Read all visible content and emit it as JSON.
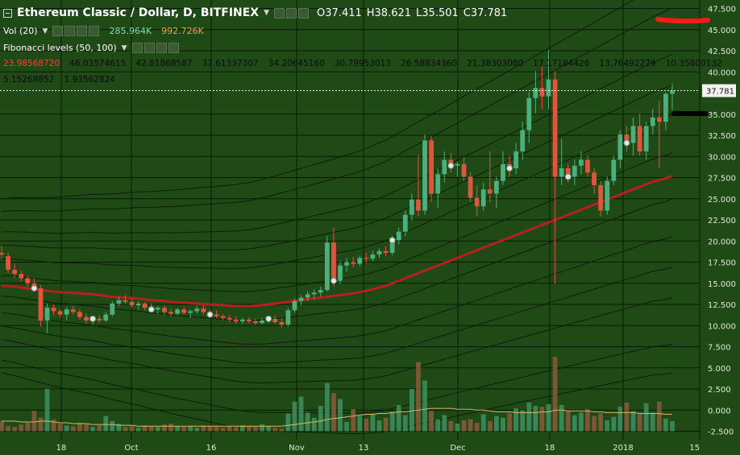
{
  "header": {
    "symbol_title": "Ethereum Classic / Dollar, D, BITFINEX",
    "open": "O37.411",
    "high": "H38.621",
    "low": "L35.501",
    "close": "C37.781"
  },
  "volume_legend": {
    "label": "Vol (20)",
    "value1": "285.964K",
    "value2": "992.726K"
  },
  "fib_legend": {
    "label": "Fibonacci levels (50, 100)",
    "row1": [
      "23.98568720",
      "46.03574615",
      "42.81868587",
      "37.61337307",
      "34.20645160",
      "30.79953013",
      "26.58834360",
      "21.38303080",
      "17.17184426",
      "13.76492279",
      "10.35800132"
    ],
    "row2": [
      "5.15268852",
      "1.93562824"
    ]
  },
  "current_price_label": "37.781",
  "colors": {
    "background": "#1f4a15",
    "up_candle": "#4caf7d",
    "down_candle": "#e05540",
    "ma_line": "#b51f1f",
    "fib_lines": "#0c1f08",
    "grid": "#081a05"
  },
  "annotations": [
    "red-marker-near-46",
    "black-marker-near-35"
  ],
  "chart_data": {
    "type": "candlestick",
    "title": "Ethereum Classic / Dollar, D, BITFINEX",
    "price_axis_ticks": [
      "47.500",
      "45.000",
      "42.500",
      "40.000",
      "37.781",
      "35.000",
      "32.500",
      "30.000",
      "27.500",
      "25.000",
      "22.500",
      "20.000",
      "17.500",
      "15.000",
      "12.500",
      "10.000",
      "7.500",
      "5.000",
      "2.500",
      "0.000",
      "-2.500"
    ],
    "x_axis_labels": [
      "18",
      "Oct",
      "16",
      "Nov",
      "13",
      "Dec",
      "18",
      "2018",
      "15"
    ],
    "ylim": [
      -3.5,
      48.5
    ],
    "grid": true,
    "candles": [
      {
        "o": 18.6,
        "h": 19.4,
        "l": 17.9,
        "c": 18.4
      },
      {
        "o": 18.2,
        "h": 18.6,
        "l": 16.2,
        "c": 16.6
      },
      {
        "o": 16.6,
        "h": 17.3,
        "l": 15.6,
        "c": 16.1
      },
      {
        "o": 16.1,
        "h": 16.5,
        "l": 15.2,
        "c": 15.6
      },
      {
        "o": 15.6,
        "h": 15.9,
        "l": 14.6,
        "c": 15.0
      },
      {
        "o": 15.0,
        "h": 15.6,
        "l": 14.1,
        "c": 14.4
      },
      {
        "o": 14.4,
        "h": 14.8,
        "l": 9.9,
        "c": 10.6
      },
      {
        "o": 10.6,
        "h": 12.6,
        "l": 9.1,
        "c": 12.1
      },
      {
        "o": 12.1,
        "h": 12.5,
        "l": 11.2,
        "c": 11.7
      },
      {
        "o": 11.7,
        "h": 12.0,
        "l": 10.9,
        "c": 11.3
      },
      {
        "o": 11.3,
        "h": 12.2,
        "l": 10.6,
        "c": 11.9
      },
      {
        "o": 11.9,
        "h": 12.3,
        "l": 11.3,
        "c": 11.6
      },
      {
        "o": 11.6,
        "h": 11.9,
        "l": 10.7,
        "c": 11.0
      },
      {
        "o": 11.0,
        "h": 11.4,
        "l": 10.2,
        "c": 10.6
      },
      {
        "o": 10.6,
        "h": 11.1,
        "l": 10.1,
        "c": 10.8
      },
      {
        "o": 10.8,
        "h": 11.2,
        "l": 10.3,
        "c": 10.6
      },
      {
        "o": 10.6,
        "h": 11.6,
        "l": 10.4,
        "c": 11.3
      },
      {
        "o": 11.3,
        "h": 12.9,
        "l": 11.1,
        "c": 12.6
      },
      {
        "o": 12.6,
        "h": 13.4,
        "l": 12.3,
        "c": 13.0
      },
      {
        "o": 13.0,
        "h": 13.6,
        "l": 12.5,
        "c": 12.8
      },
      {
        "o": 12.8,
        "h": 13.2,
        "l": 12.1,
        "c": 12.4
      },
      {
        "o": 12.4,
        "h": 12.9,
        "l": 11.9,
        "c": 12.6
      },
      {
        "o": 12.6,
        "h": 12.8,
        "l": 11.8,
        "c": 12.1
      },
      {
        "o": 12.1,
        "h": 12.6,
        "l": 11.6,
        "c": 11.9
      },
      {
        "o": 11.9,
        "h": 12.3,
        "l": 11.4,
        "c": 12.1
      },
      {
        "o": 12.1,
        "h": 12.4,
        "l": 11.2,
        "c": 11.6
      },
      {
        "o": 11.6,
        "h": 12.0,
        "l": 11.1,
        "c": 11.4
      },
      {
        "o": 11.4,
        "h": 12.1,
        "l": 11.2,
        "c": 11.9
      },
      {
        "o": 11.9,
        "h": 12.2,
        "l": 11.3,
        "c": 11.5
      },
      {
        "o": 11.5,
        "h": 11.9,
        "l": 10.9,
        "c": 11.7
      },
      {
        "o": 11.7,
        "h": 12.3,
        "l": 11.4,
        "c": 12.0
      },
      {
        "o": 12.0,
        "h": 12.4,
        "l": 11.3,
        "c": 11.6
      },
      {
        "o": 11.6,
        "h": 11.9,
        "l": 11.0,
        "c": 11.3
      },
      {
        "o": 11.3,
        "h": 11.8,
        "l": 10.9,
        "c": 11.1
      },
      {
        "o": 11.1,
        "h": 11.4,
        "l": 10.6,
        "c": 10.9
      },
      {
        "o": 10.9,
        "h": 11.2,
        "l": 10.4,
        "c": 10.7
      },
      {
        "o": 10.7,
        "h": 11.1,
        "l": 10.2,
        "c": 10.5
      },
      {
        "o": 10.5,
        "h": 10.9,
        "l": 10.2,
        "c": 10.7
      },
      {
        "o": 10.7,
        "h": 11.0,
        "l": 10.3,
        "c": 10.5
      },
      {
        "o": 10.5,
        "h": 10.8,
        "l": 10.1,
        "c": 10.3
      },
      {
        "o": 10.3,
        "h": 10.9,
        "l": 10.1,
        "c": 10.6
      },
      {
        "o": 10.6,
        "h": 11.1,
        "l": 10.3,
        "c": 10.8
      },
      {
        "o": 10.8,
        "h": 11.2,
        "l": 10.2,
        "c": 10.4
      },
      {
        "o": 10.4,
        "h": 10.9,
        "l": 9.8,
        "c": 10.1
      },
      {
        "o": 10.1,
        "h": 12.1,
        "l": 9.9,
        "c": 11.8
      },
      {
        "o": 11.8,
        "h": 13.2,
        "l": 11.5,
        "c": 12.9
      },
      {
        "o": 12.9,
        "h": 13.6,
        "l": 12.4,
        "c": 13.3
      },
      {
        "o": 13.3,
        "h": 14.1,
        "l": 12.9,
        "c": 13.7
      },
      {
        "o": 13.7,
        "h": 14.3,
        "l": 13.1,
        "c": 13.9
      },
      {
        "o": 13.9,
        "h": 14.6,
        "l": 13.4,
        "c": 14.2
      },
      {
        "o": 14.2,
        "h": 20.6,
        "l": 14.0,
        "c": 19.8
      },
      {
        "o": 19.8,
        "h": 21.6,
        "l": 14.6,
        "c": 15.3
      },
      {
        "o": 15.3,
        "h": 17.6,
        "l": 14.9,
        "c": 17.1
      },
      {
        "o": 17.1,
        "h": 18.0,
        "l": 16.4,
        "c": 17.5
      },
      {
        "o": 17.5,
        "h": 18.1,
        "l": 16.9,
        "c": 17.3
      },
      {
        "o": 17.3,
        "h": 18.3,
        "l": 17.0,
        "c": 18.0
      },
      {
        "o": 18.0,
        "h": 18.6,
        "l": 17.4,
        "c": 17.9
      },
      {
        "o": 17.9,
        "h": 18.8,
        "l": 17.6,
        "c": 18.4
      },
      {
        "o": 18.4,
        "h": 19.1,
        "l": 18.0,
        "c": 18.8
      },
      {
        "o": 18.8,
        "h": 19.4,
        "l": 18.2,
        "c": 18.6
      },
      {
        "o": 18.6,
        "h": 20.6,
        "l": 18.3,
        "c": 20.1
      },
      {
        "o": 20.1,
        "h": 21.6,
        "l": 19.6,
        "c": 21.1
      },
      {
        "o": 21.1,
        "h": 23.6,
        "l": 20.6,
        "c": 23.1
      },
      {
        "o": 23.1,
        "h": 25.6,
        "l": 22.4,
        "c": 24.9
      },
      {
        "o": 24.9,
        "h": 30.2,
        "l": 22.9,
        "c": 23.6
      },
      {
        "o": 23.6,
        "h": 32.6,
        "l": 23.1,
        "c": 31.9
      },
      {
        "o": 31.9,
        "h": 32.4,
        "l": 24.6,
        "c": 25.6
      },
      {
        "o": 25.6,
        "h": 28.6,
        "l": 23.9,
        "c": 27.9
      },
      {
        "o": 27.9,
        "h": 30.6,
        "l": 26.9,
        "c": 29.6
      },
      {
        "o": 29.6,
        "h": 30.4,
        "l": 28.1,
        "c": 28.9
      },
      {
        "o": 28.9,
        "h": 29.4,
        "l": 27.6,
        "c": 29.1
      },
      {
        "o": 29.1,
        "h": 29.9,
        "l": 27.1,
        "c": 27.6
      },
      {
        "o": 27.6,
        "h": 28.1,
        "l": 24.6,
        "c": 25.1
      },
      {
        "o": 25.1,
        "h": 26.6,
        "l": 22.9,
        "c": 24.1
      },
      {
        "o": 24.1,
        "h": 26.9,
        "l": 23.6,
        "c": 26.1
      },
      {
        "o": 26.1,
        "h": 30.6,
        "l": 24.6,
        "c": 25.6
      },
      {
        "o": 25.6,
        "h": 27.6,
        "l": 23.9,
        "c": 27.1
      },
      {
        "o": 27.1,
        "h": 30.6,
        "l": 26.6,
        "c": 29.1
      },
      {
        "o": 29.1,
        "h": 30.1,
        "l": 27.6,
        "c": 28.6
      },
      {
        "o": 28.6,
        "h": 31.6,
        "l": 27.9,
        "c": 30.6
      },
      {
        "o": 30.6,
        "h": 34.1,
        "l": 29.6,
        "c": 33.1
      },
      {
        "o": 33.1,
        "h": 37.6,
        "l": 31.6,
        "c": 36.9
      },
      {
        "o": 36.9,
        "h": 40.1,
        "l": 35.1,
        "c": 38.1
      },
      {
        "o": 38.1,
        "h": 40.6,
        "l": 35.6,
        "c": 37.1
      },
      {
        "o": 37.1,
        "h": 42.6,
        "l": 35.6,
        "c": 39.1
      },
      {
        "o": 39.1,
        "h": 40.1,
        "l": 14.9,
        "c": 27.6
      },
      {
        "o": 27.6,
        "h": 32.1,
        "l": 26.6,
        "c": 28.6
      },
      {
        "o": 28.6,
        "h": 29.1,
        "l": 26.9,
        "c": 27.6
      },
      {
        "o": 27.6,
        "h": 29.6,
        "l": 26.6,
        "c": 28.9
      },
      {
        "o": 28.9,
        "h": 30.6,
        "l": 27.9,
        "c": 29.6
      },
      {
        "o": 29.6,
        "h": 30.1,
        "l": 27.6,
        "c": 28.1
      },
      {
        "o": 28.1,
        "h": 28.6,
        "l": 25.6,
        "c": 26.6
      },
      {
        "o": 26.6,
        "h": 27.1,
        "l": 22.9,
        "c": 23.6
      },
      {
        "o": 23.6,
        "h": 27.6,
        "l": 23.1,
        "c": 27.1
      },
      {
        "o": 27.1,
        "h": 30.1,
        "l": 26.6,
        "c": 29.6
      },
      {
        "o": 29.6,
        "h": 33.1,
        "l": 28.6,
        "c": 32.6
      },
      {
        "o": 32.6,
        "h": 33.6,
        "l": 30.6,
        "c": 31.6
      },
      {
        "o": 31.6,
        "h": 34.6,
        "l": 30.1,
        "c": 33.6
      },
      {
        "o": 33.6,
        "h": 35.1,
        "l": 30.1,
        "c": 30.6
      },
      {
        "o": 30.6,
        "h": 34.1,
        "l": 29.6,
        "c": 33.6
      },
      {
        "o": 33.6,
        "h": 35.6,
        "l": 32.6,
        "c": 34.6
      },
      {
        "o": 34.6,
        "h": 36.6,
        "l": 28.6,
        "c": 34.1
      },
      {
        "o": 34.1,
        "h": 37.6,
        "l": 33.1,
        "c": 37.4
      },
      {
        "o": 37.411,
        "h": 38.621,
        "l": 35.501,
        "c": 37.781
      }
    ],
    "ma_series": [
      14.7,
      14.65,
      14.6,
      14.5,
      14.4,
      14.3,
      14.2,
      14.1,
      14.0,
      13.95,
      13.9,
      13.85,
      13.8,
      13.75,
      13.7,
      13.6,
      13.5,
      13.4,
      13.35,
      13.3,
      13.25,
      13.2,
      13.1,
      13.0,
      12.95,
      12.9,
      12.8,
      12.75,
      12.7,
      12.65,
      12.6,
      12.55,
      12.5,
      12.45,
      12.4,
      12.35,
      12.3,
      12.3,
      12.3,
      12.35,
      12.4,
      12.5,
      12.6,
      12.7,
      12.8,
      12.9,
      13.0,
      13.1,
      13.2,
      13.3,
      13.4,
      13.5,
      13.6,
      13.7,
      13.8,
      13.95,
      14.1,
      14.3,
      14.5,
      14.7,
      15.0,
      15.3,
      15.6,
      15.9,
      16.2,
      16.5,
      16.8,
      17.1,
      17.4,
      17.7,
      18.0,
      18.3,
      18.6,
      18.9,
      19.2,
      19.5,
      19.8,
      20.1,
      20.4,
      20.7,
      21.0,
      21.3,
      21.6,
      21.9,
      22.2,
      22.5,
      22.8,
      23.1,
      23.4,
      23.7,
      24.0,
      24.3,
      24.6,
      24.9,
      25.2,
      25.5,
      25.8,
      26.1,
      26.4,
      26.7,
      27.0,
      27.2,
      27.4,
      27.7
    ],
    "fib_band_offsets": [
      22.05,
      18.83,
      13.63,
      10.22,
      6.81,
      2.6,
      -2.6,
      -6.81,
      -10.22,
      -13.63,
      -18.83,
      -22.05
    ],
    "volume": [
      1.2,
      0.6,
      0.5,
      0.8,
      1.0,
      2.4,
      1.6,
      5.0,
      1.4,
      0.9,
      0.7,
      0.6,
      1.0,
      0.8,
      0.5,
      0.7,
      1.8,
      1.2,
      0.9,
      0.5,
      0.6,
      0.4,
      0.7,
      0.6,
      0.5,
      0.8,
      0.9,
      0.6,
      0.5,
      0.6,
      0.4,
      0.7,
      0.6,
      0.5,
      0.4,
      0.6,
      0.5,
      0.7,
      0.6,
      0.5,
      0.8,
      0.6,
      0.4,
      0.3,
      2.1,
      3.5,
      4.1,
      2.2,
      1.6,
      3.0,
      5.7,
      4.5,
      3.8,
      1.1,
      2.6,
      1.8,
      1.5,
      2.0,
      1.3,
      1.6,
      2.3,
      3.1,
      1.9,
      5.0,
      8.2,
      6.0,
      2.4,
      1.4,
      1.9,
      1.2,
      0.9,
      1.3,
      1.4,
      1.0,
      2.0,
      1.2,
      1.8,
      1.6,
      2.1,
      2.7,
      2.5,
      3.4,
      3.0,
      2.9,
      3.2,
      8.8,
      3.1,
      2.4,
      1.9,
      2.2,
      2.6,
      1.8,
      2.1,
      1.3,
      1.7,
      2.9,
      3.4,
      2.4,
      2.1,
      3.3,
      2.2,
      3.5,
      1.5,
      1.2
    ],
    "volume_ma": [
      1.2,
      1.2,
      1.2,
      1.1,
      1.1,
      1.1,
      1.2,
      1.2,
      1.1,
      1.0,
      1.0,
      0.9,
      0.9,
      0.9,
      0.8,
      0.8,
      0.8,
      0.8,
      0.7,
      0.7,
      0.7,
      0.6,
      0.6,
      0.6,
      0.6,
      0.6,
      0.6,
      0.6,
      0.6,
      0.6,
      0.6,
      0.6,
      0.6,
      0.6,
      0.6,
      0.6,
      0.6,
      0.6,
      0.6,
      0.6,
      0.6,
      0.6,
      0.6,
      0.6,
      0.7,
      0.8,
      0.9,
      1.0,
      1.1,
      1.2,
      1.4,
      1.5,
      1.6,
      1.7,
      1.8,
      1.9,
      2.0,
      2.0,
      2.1,
      2.1,
      2.2,
      2.3,
      2.3,
      2.4,
      2.5,
      2.6,
      2.7,
      2.7,
      2.7,
      2.7,
      2.6,
      2.6,
      2.6,
      2.5,
      2.5,
      2.4,
      2.3,
      2.3,
      2.3,
      2.2,
      2.2,
      2.2,
      2.2,
      2.3,
      2.3,
      2.5,
      2.5,
      2.4,
      2.4,
      2.4,
      2.4,
      2.3,
      2.3,
      2.2,
      2.2,
      2.2,
      2.2,
      2.2,
      2.1,
      2.1,
      2.1,
      2.1,
      2.0,
      2.0
    ],
    "marked_dots": [
      5,
      14,
      23,
      32,
      41,
      51,
      60,
      69,
      78,
      87,
      96
    ]
  }
}
